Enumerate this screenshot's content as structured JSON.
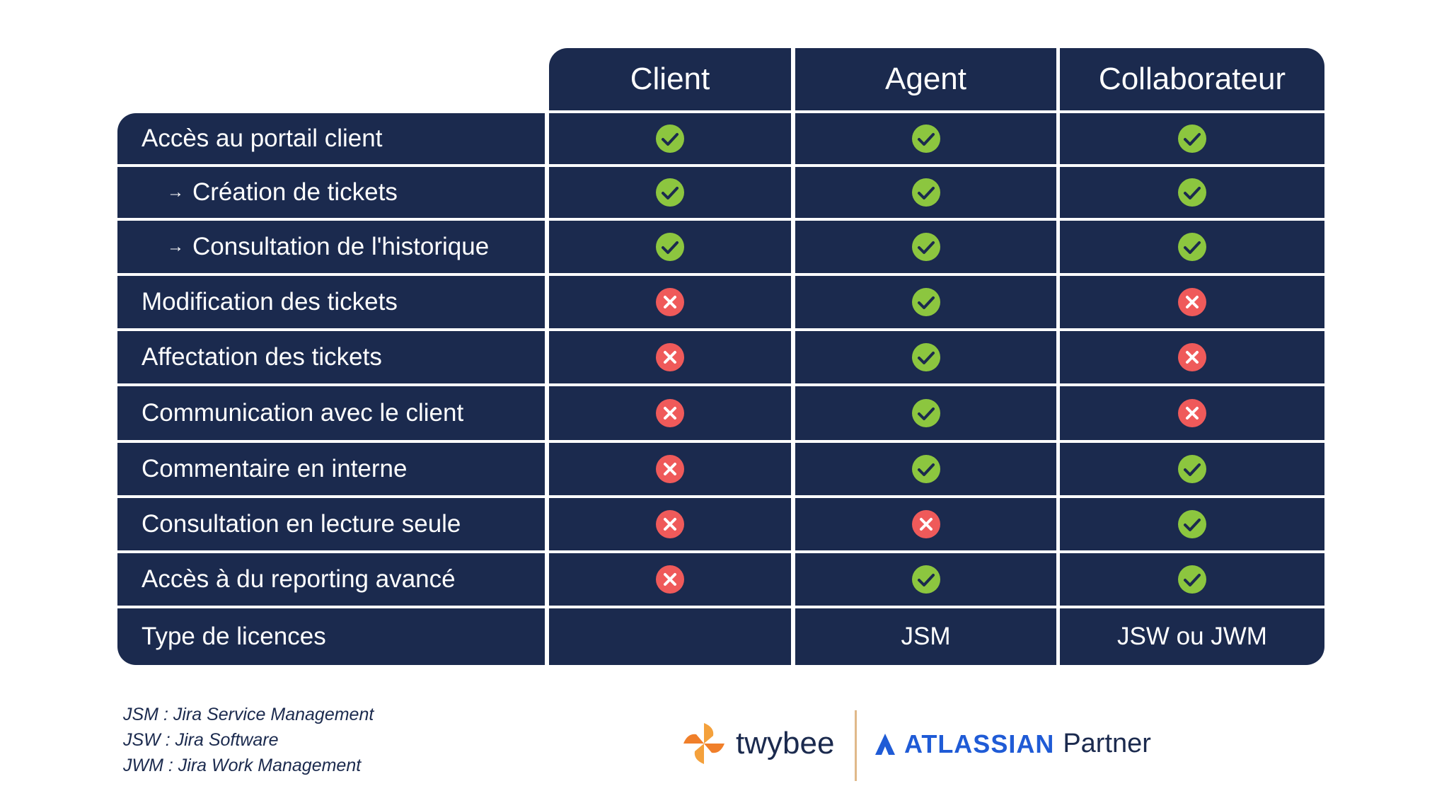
{
  "headers": [
    "Client",
    "Agent",
    "Collaborateur"
  ],
  "rows": [
    {
      "label": "Accès au portail client",
      "sub": false,
      "values": [
        "check",
        "check",
        "check"
      ]
    },
    {
      "label": "Création de tickets",
      "sub": true,
      "values": [
        "check",
        "check",
        "check"
      ]
    },
    {
      "label": "Consultation de l'historique",
      "sub": true,
      "values": [
        "check",
        "check",
        "check"
      ]
    },
    {
      "label": "Modification des tickets",
      "sub": false,
      "values": [
        "cross",
        "check",
        "cross"
      ]
    },
    {
      "label": "Affectation des tickets",
      "sub": false,
      "values": [
        "cross",
        "check",
        "cross"
      ]
    },
    {
      "label": "Communication avec le client",
      "sub": false,
      "values": [
        "cross",
        "check",
        "cross"
      ]
    },
    {
      "label": "Commentaire en interne",
      "sub": false,
      "values": [
        "cross",
        "check",
        "check"
      ]
    },
    {
      "label": "Consultation en lecture seule",
      "sub": false,
      "values": [
        "cross",
        "cross",
        "check"
      ]
    },
    {
      "label": "Accès à du reporting avancé",
      "sub": false,
      "values": [
        "cross",
        "check",
        "check"
      ]
    },
    {
      "label": "Type de licences",
      "sub": false,
      "values": [
        "",
        "JSM",
        "JSW ou JWM"
      ]
    }
  ],
  "sub_arrow": "→",
  "footnotes": [
    "JSM : Jira Service Management",
    "JSW : Jira Software",
    "JWM : Jira Work Management"
  ],
  "logos": {
    "twybee": "twybee",
    "atlassian": "ATLASSIAN",
    "partner": "Partner"
  },
  "colors": {
    "navy": "#1b2a4e",
    "check": "#8cc63f",
    "cross": "#ef5a5a",
    "atlassian_blue": "#1f5bd6",
    "twybee_orange": "#f4a13c"
  }
}
